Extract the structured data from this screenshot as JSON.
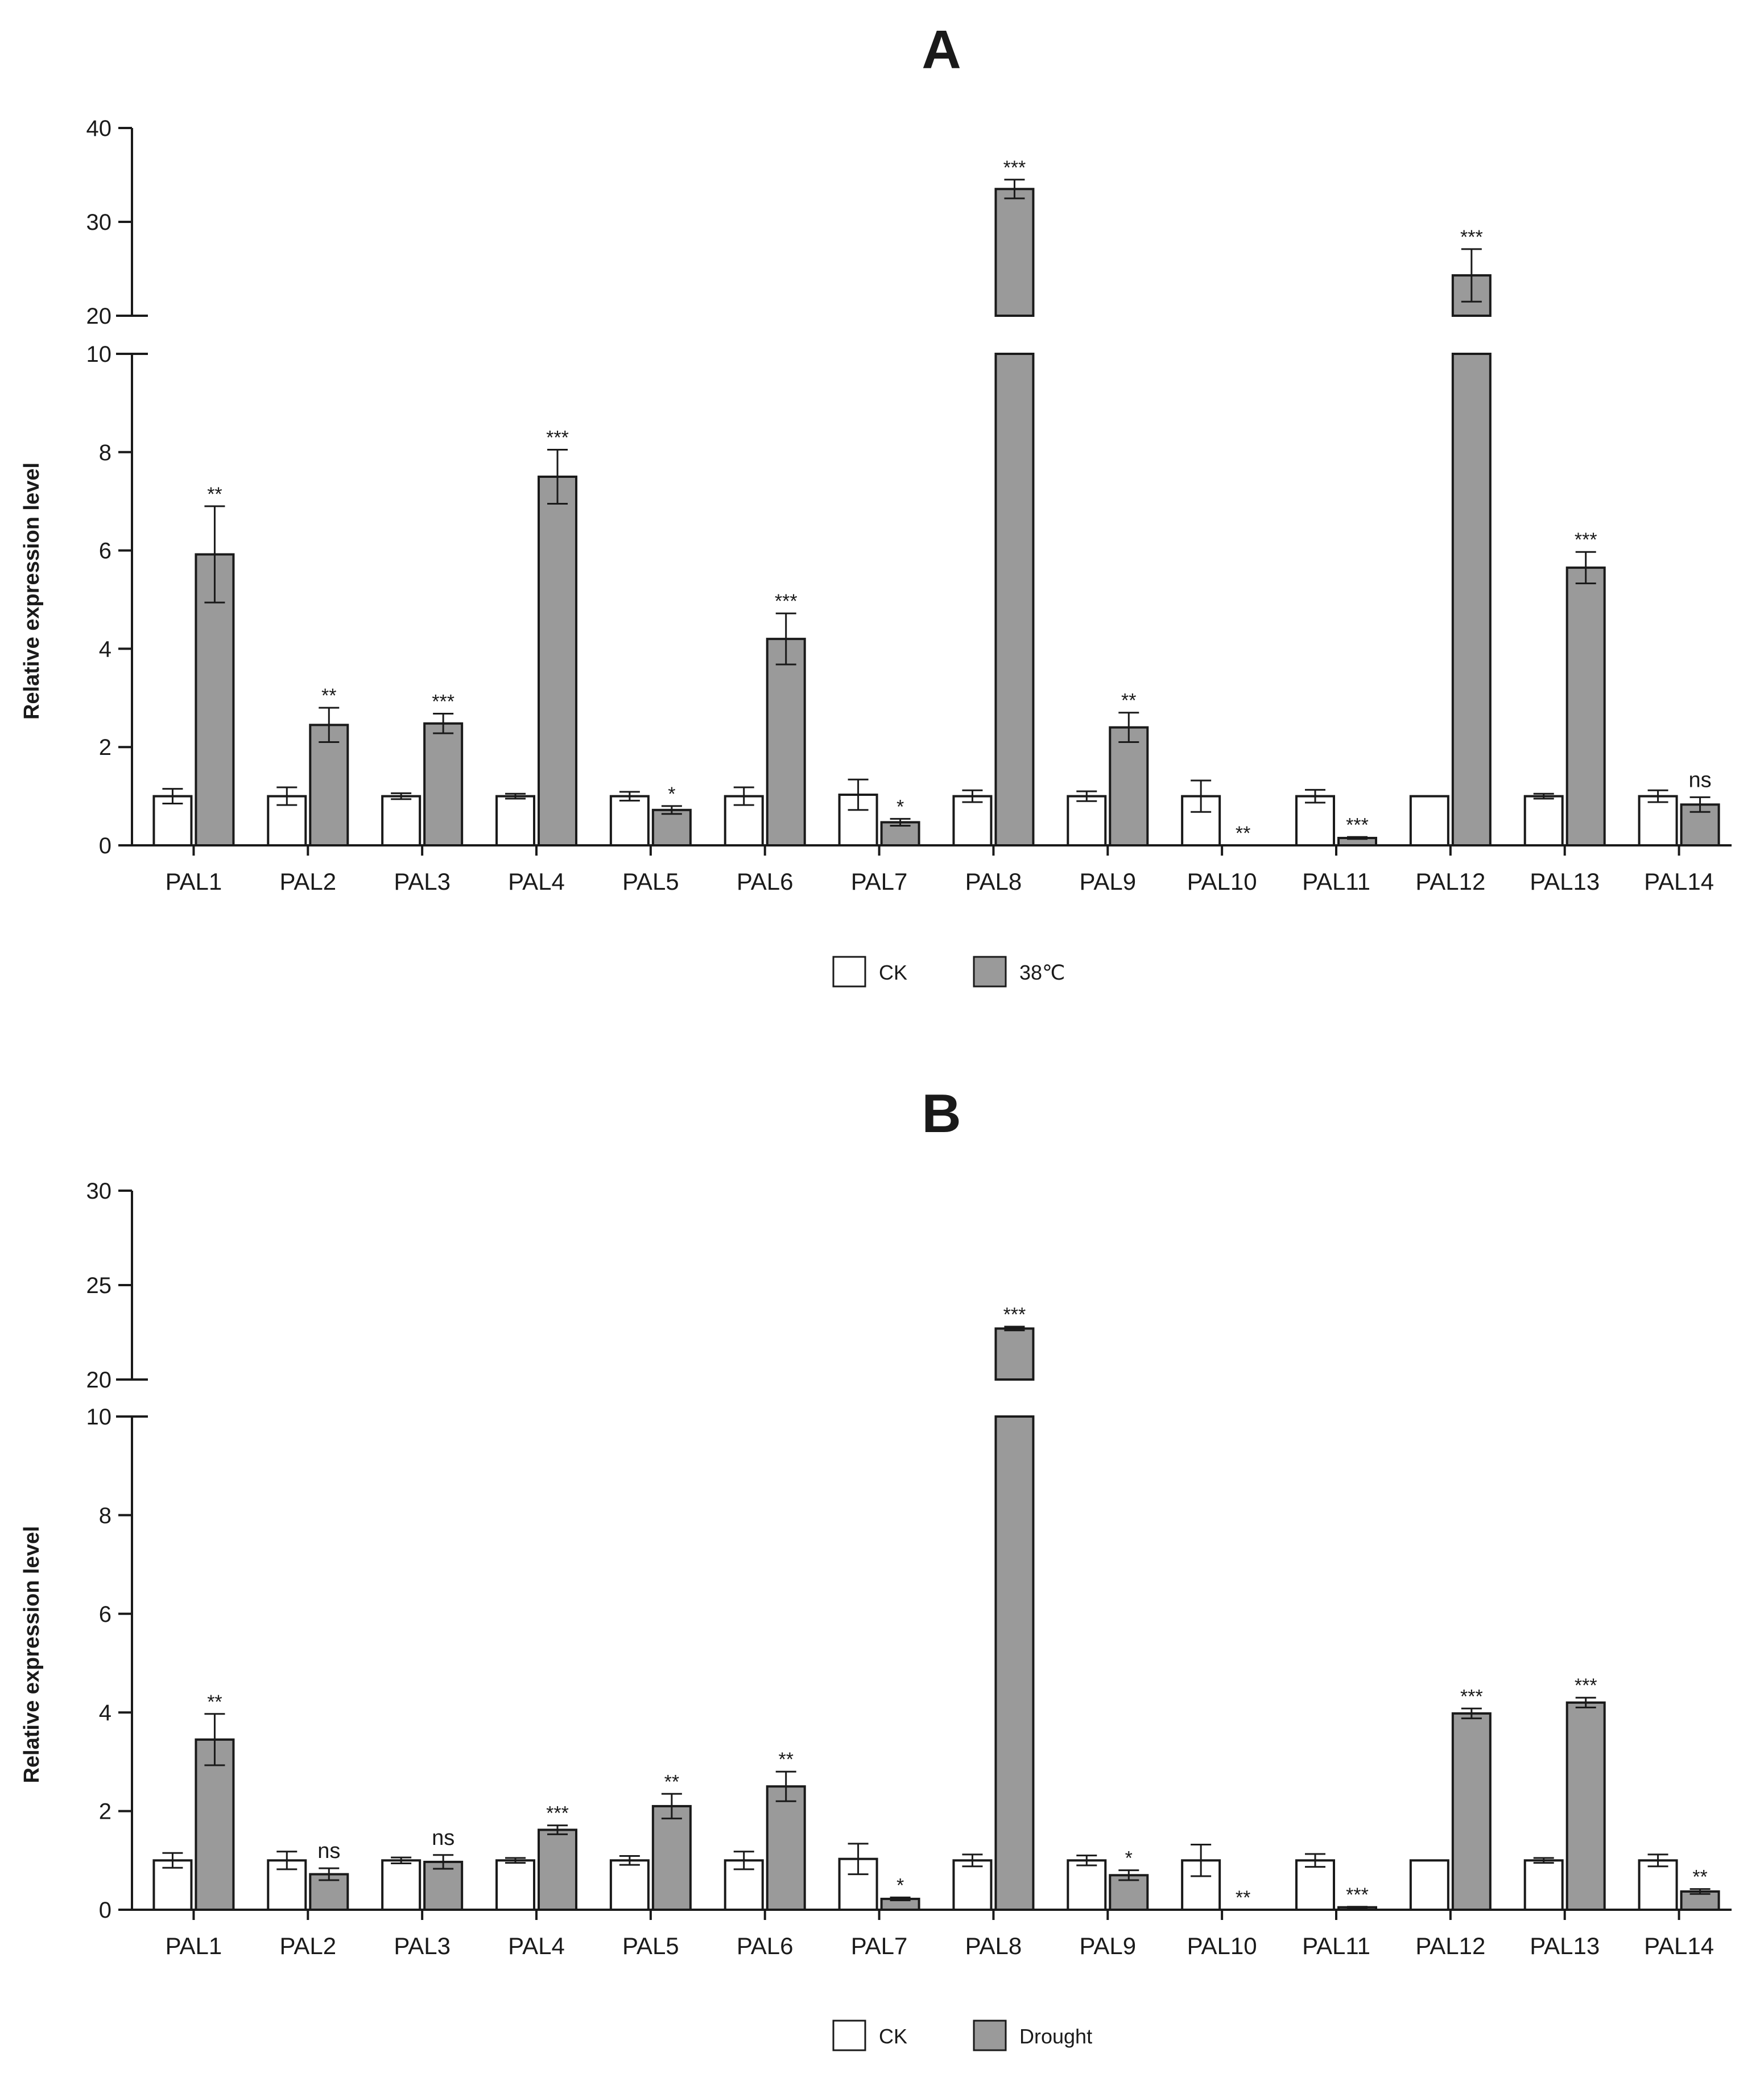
{
  "colors": {
    "ck_fill": "#ffffff",
    "treatment_fill": "#9a9a9a",
    "stroke": "#1a1a1a"
  },
  "chart_data": [
    {
      "type": "bar",
      "panel": "A",
      "title": "A",
      "ylabel": "Relative expression level",
      "categories": [
        "PAL1",
        "PAL2",
        "PAL3",
        "PAL4",
        "PAL5",
        "PAL6",
        "PAL7",
        "PAL8",
        "PAL9",
        "PAL10",
        "PAL11",
        "PAL12",
        "PAL13",
        "PAL14"
      ],
      "y_axis_break": {
        "lower_range": [
          0,
          10
        ],
        "upper_range": [
          20,
          40
        ]
      },
      "y_ticks_lower": [
        0,
        2,
        4,
        6,
        8,
        10
      ],
      "y_ticks_upper": [
        20,
        30,
        40
      ],
      "series": [
        {
          "name": "CK",
          "fill": "#ffffff",
          "values": [
            1.0,
            1.0,
            1.0,
            1.0,
            1.0,
            1.0,
            1.03,
            1.0,
            1.0,
            1.0,
            1.0,
            1.0,
            1.0,
            1.0
          ],
          "errors": [
            0.15,
            0.18,
            0.06,
            0.05,
            0.09,
            0.18,
            0.31,
            0.12,
            0.1,
            0.32,
            0.13,
            0.0,
            0.05,
            0.12
          ]
        },
        {
          "name": "38℃",
          "fill": "#9a9a9a",
          "values": [
            5.92,
            2.45,
            2.48,
            7.5,
            0.72,
            4.2,
            0.47,
            33.5,
            2.4,
            0.0,
            0.15,
            24.3,
            5.65,
            0.83
          ],
          "errors": [
            0.98,
            0.35,
            0.2,
            0.55,
            0.08,
            0.52,
            0.07,
            1.0,
            0.3,
            0.0,
            0.02,
            2.8,
            0.32,
            0.15
          ]
        }
      ],
      "significance": [
        "**",
        "**",
        "***",
        "***",
        "*",
        "***",
        "*",
        "***",
        "**",
        "**",
        "***",
        "***",
        "***",
        "ns"
      ]
    },
    {
      "type": "bar",
      "panel": "B",
      "title": "B",
      "ylabel": "Relative expression level",
      "categories": [
        "PAL1",
        "PAL2",
        "PAL3",
        "PAL4",
        "PAL5",
        "PAL6",
        "PAL7",
        "PAL8",
        "PAL9",
        "PAL10",
        "PAL11",
        "PAL12",
        "PAL13",
        "PAL14"
      ],
      "y_axis_break": {
        "lower_range": [
          0,
          10
        ],
        "upper_range": [
          20,
          30
        ]
      },
      "y_ticks_lower": [
        0,
        2,
        4,
        6,
        8,
        10
      ],
      "y_ticks_upper": [
        20,
        25,
        30
      ],
      "series": [
        {
          "name": "CK",
          "fill": "#ffffff",
          "values": [
            1.0,
            1.0,
            1.0,
            1.0,
            1.0,
            1.0,
            1.03,
            1.0,
            1.0,
            1.0,
            1.0,
            1.0,
            1.0,
            1.0
          ],
          "errors": [
            0.15,
            0.18,
            0.06,
            0.05,
            0.09,
            0.18,
            0.31,
            0.12,
            0.1,
            0.32,
            0.13,
            0.0,
            0.05,
            0.12
          ]
        },
        {
          "name": "Drought",
          "fill": "#9a9a9a",
          "values": [
            3.45,
            0.72,
            0.97,
            1.62,
            2.1,
            2.5,
            0.22,
            22.7,
            0.7,
            0.0,
            0.05,
            3.98,
            4.2,
            0.37
          ],
          "errors": [
            0.52,
            0.12,
            0.14,
            0.09,
            0.25,
            0.3,
            0.03,
            0.1,
            0.1,
            0.0,
            0.01,
            0.1,
            0.1,
            0.05
          ]
        }
      ],
      "significance": [
        "**",
        "ns",
        "ns",
        "***",
        "**",
        "**",
        "*",
        "***",
        "*",
        "**",
        "***",
        "***",
        "***",
        "**"
      ]
    }
  ]
}
